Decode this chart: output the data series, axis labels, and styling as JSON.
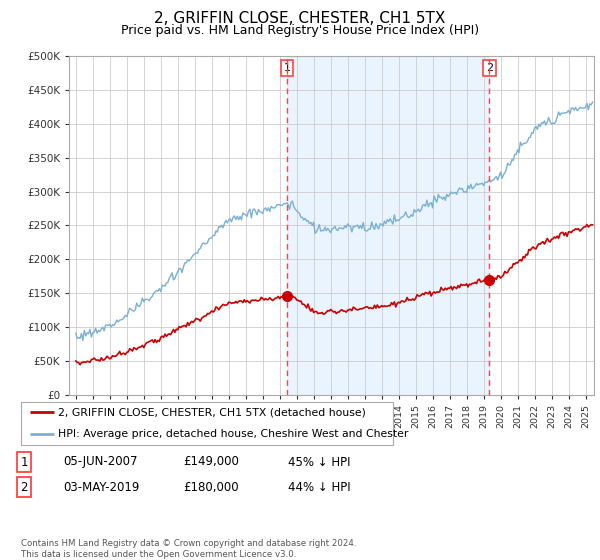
{
  "title": "2, GRIFFIN CLOSE, CHESTER, CH1 5TX",
  "subtitle": "Price paid vs. HM Land Registry's House Price Index (HPI)",
  "title_fontsize": 11,
  "subtitle_fontsize": 9,
  "hpi_color": "#7ab0d4",
  "hpi_fill_color": "#ddeeff",
  "price_color": "#cc0000",
  "vline_color": "#ff4444",
  "background_color": "#ffffff",
  "grid_color": "#cccccc",
  "ylim": [
    0,
    500000
  ],
  "yticks": [
    0,
    50000,
    100000,
    150000,
    200000,
    250000,
    300000,
    350000,
    400000,
    450000,
    500000
  ],
  "sales": [
    {
      "date_num": 2007.43,
      "price": 149000,
      "label": "1",
      "pct": "45% ↓ HPI",
      "date_str": "05-JUN-2007"
    },
    {
      "date_num": 2019.34,
      "price": 180000,
      "label": "2",
      "pct": "44% ↓ HPI",
      "date_str": "03-MAY-2019"
    }
  ],
  "legend_entries": [
    {
      "label": "2, GRIFFIN CLOSE, CHESTER, CH1 5TX (detached house)",
      "color": "#cc0000"
    },
    {
      "label": "HPI: Average price, detached house, Cheshire West and Chester",
      "color": "#7ab0d4"
    }
  ],
  "footer": "Contains HM Land Registry data © Crown copyright and database right 2024.\nThis data is licensed under the Open Government Licence v3.0.",
  "table_rows": [
    [
      "1",
      "05-JUN-2007",
      "£149,000",
      "45% ↓ HPI"
    ],
    [
      "2",
      "03-MAY-2019",
      "£180,000",
      "44% ↓ HPI"
    ]
  ],
  "xmin": 1994.6,
  "xmax": 2025.5
}
